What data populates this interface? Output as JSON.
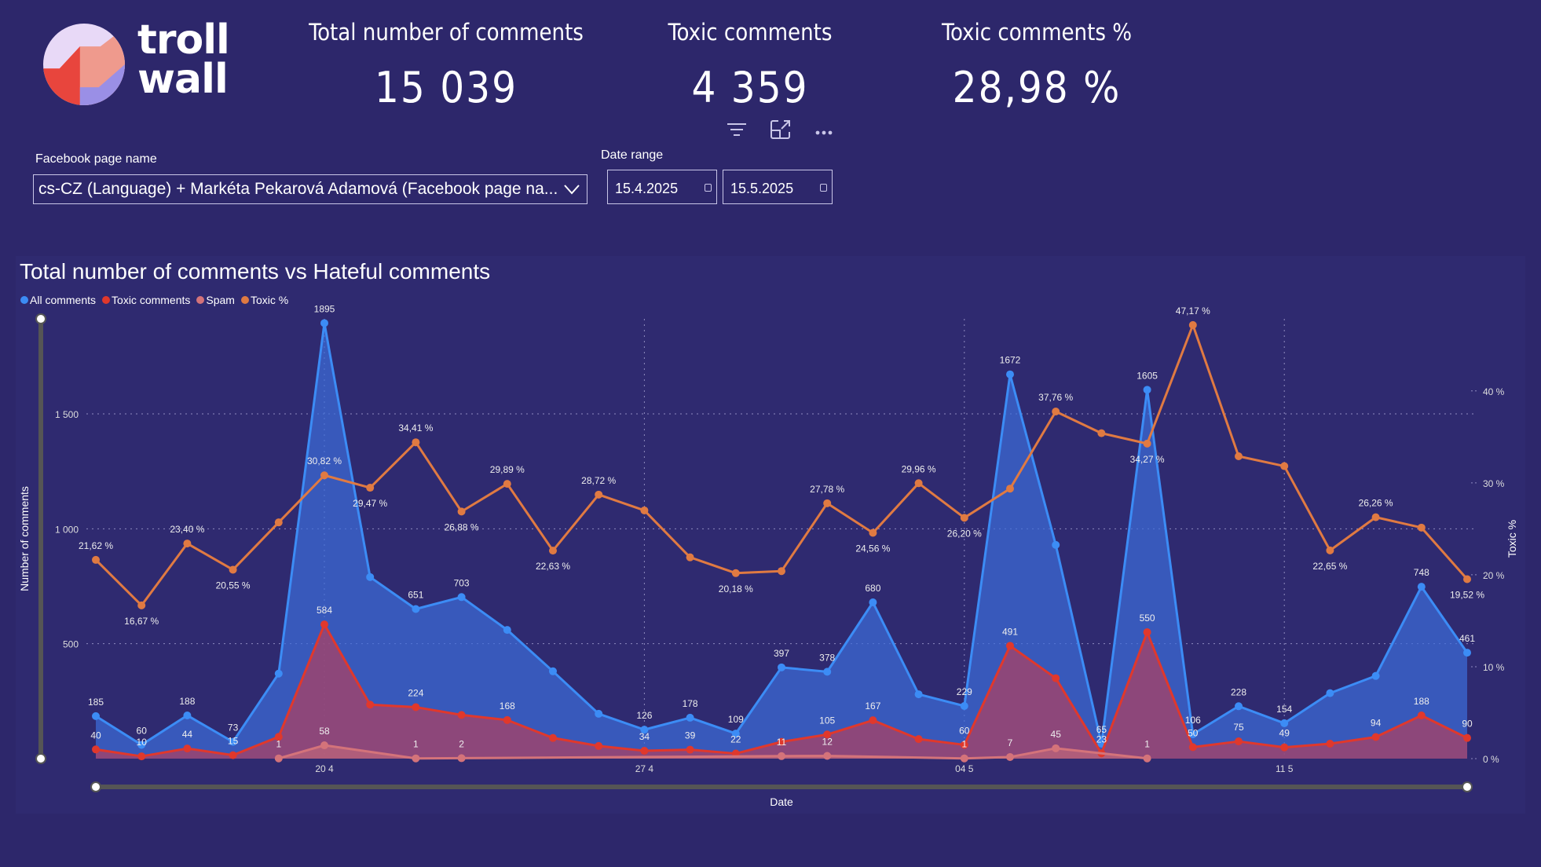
{
  "brand": {
    "logo_text_line1": "troll",
    "logo_text_line2": "wall"
  },
  "kpis": [
    {
      "title": "Total number of comments",
      "value": "15 039"
    },
    {
      "title": "Toxic comments",
      "value": "4 359"
    },
    {
      "title": "Toxic comments %",
      "value": "28,98 %"
    }
  ],
  "visual_header_icons": [
    "filter-icon",
    "focus-mode-icon",
    "more-options-icon"
  ],
  "filters": {
    "page_label": "Facebook page name",
    "page_value": "cs-CZ (Language) + Markéta Pekarová Adamová (Facebook page na...",
    "date_label": "Date range",
    "date_from": "15.4.2025",
    "date_to": "15.5.2025"
  },
  "colors": {
    "background": "#2d276b",
    "all_comments": "#3c8cf5",
    "toxic_comments": "#e0382c",
    "spam": "#d4737a",
    "toxic_pct": "#e07a42"
  },
  "chart_data": {
    "type": "line",
    "title": "Total number of comments vs Hateful comments",
    "xlabel": "Date",
    "ylabel": "Number of comments",
    "y2label": "Toxic %",
    "ylim": [
      0,
      1900
    ],
    "y2lim": [
      0,
      47.5
    ],
    "yticks": [
      "500",
      "1 000",
      "1 500"
    ],
    "y2ticks": [
      "0 %",
      "10 %",
      "20 %",
      "30 %",
      "40 %"
    ],
    "xtick_labels": [
      {
        "index": 5,
        "label": "20 4"
      },
      {
        "index": 12,
        "label": "27 4"
      },
      {
        "index": 19,
        "label": "04 5"
      },
      {
        "index": 26,
        "label": "11 5"
      }
    ],
    "grid": true,
    "legend_position": "top-left",
    "x": [
      "15 4",
      "16 4",
      "17 4",
      "18 4",
      "19 4",
      "20 4",
      "21 4",
      "22 4",
      "23 4",
      "24 4",
      "25 4",
      "26 4",
      "27 4",
      "28 4",
      "29 4",
      "30 4",
      "01 5",
      "02 5",
      "03 5",
      "04 5",
      "05 5",
      "06 5",
      "07 5",
      "08 5",
      "09 5",
      "10 5",
      "11 5",
      "12 5",
      "13 5",
      "14 5",
      "15 5"
    ],
    "series": [
      {
        "name": "All comments",
        "axis": "left",
        "values": [
          185,
          60,
          188,
          73,
          370,
          1895,
          790,
          651,
          703,
          560,
          380,
          195,
          126,
          178,
          109,
          397,
          378,
          680,
          280,
          229,
          1672,
          930,
          65,
          1605,
          106,
          228,
          154,
          285,
          360,
          748,
          461
        ],
        "labels": [
          "185",
          "60",
          "188",
          "73",
          "",
          "1895",
          "",
          "651",
          "703",
          "",
          "",
          "",
          "126",
          "178",
          "109",
          "397",
          "378",
          "680",
          "",
          "229",
          "1672",
          "",
          "65",
          "1605",
          "106",
          "228",
          "154",
          "",
          "",
          "748",
          "461"
        ]
      },
      {
        "name": "Toxic comments",
        "axis": "left",
        "values": [
          40,
          10,
          44,
          15,
          95,
          584,
          235,
          224,
          190,
          168,
          90,
          55,
          34,
          39,
          22,
          73,
          105,
          167,
          85,
          60,
          491,
          350,
          23,
          550,
          50,
          75,
          49,
          65,
          94,
          188,
          90
        ],
        "labels": [
          "40",
          "10",
          "44",
          "15",
          "",
          "584",
          "",
          "224",
          "",
          "168",
          "",
          "",
          "34",
          "39",
          "22",
          "",
          "105",
          "167",
          "",
          "60",
          "491",
          "",
          "23",
          "550",
          "50",
          "75",
          "49",
          "",
          "94",
          "188",
          "90"
        ]
      },
      {
        "name": "Spam",
        "axis": "left",
        "values": [
          null,
          null,
          null,
          null,
          1,
          58,
          null,
          1,
          2,
          null,
          null,
          null,
          null,
          null,
          null,
          11,
          12,
          null,
          null,
          1,
          7,
          45,
          null,
          1,
          null,
          null,
          null,
          null,
          null,
          null,
          null
        ],
        "labels": [
          "",
          "",
          "",
          "",
          "1",
          "58",
          "",
          "1",
          "2",
          "",
          "",
          "",
          "",
          "",
          "",
          "11",
          "12",
          "",
          "",
          "1",
          "7",
          "45",
          "",
          "1",
          "",
          "",
          "",
          "",
          "",
          "",
          ""
        ]
      },
      {
        "name": "Toxic %",
        "axis": "right",
        "values": [
          21.62,
          16.67,
          23.4,
          20.55,
          25.7,
          30.82,
          29.47,
          34.41,
          26.88,
          29.89,
          22.63,
          28.72,
          27.0,
          21.9,
          20.18,
          20.4,
          27.78,
          24.56,
          29.96,
          26.2,
          29.37,
          37.76,
          35.4,
          34.27,
          47.17,
          32.89,
          31.82,
          22.65,
          26.26,
          25.13,
          19.52
        ],
        "labels": [
          "21,62 %",
          "16,67 %",
          "23,40 %",
          "20,55 %",
          "",
          "30,82 %",
          "29,47 %",
          "34,41 %",
          "26,88 %",
          "29,89 %",
          "22,63 %",
          "28,72 %",
          "",
          "",
          "20,18 %",
          "",
          "27,78 %",
          "24,56 %",
          "29,96 %",
          "26,20 %",
          "",
          "37,76 %",
          "",
          "34,27 %",
          "47,17 %",
          "",
          "",
          "22,65 %",
          "26,26 %",
          "",
          "19,52 %"
        ]
      }
    ]
  }
}
